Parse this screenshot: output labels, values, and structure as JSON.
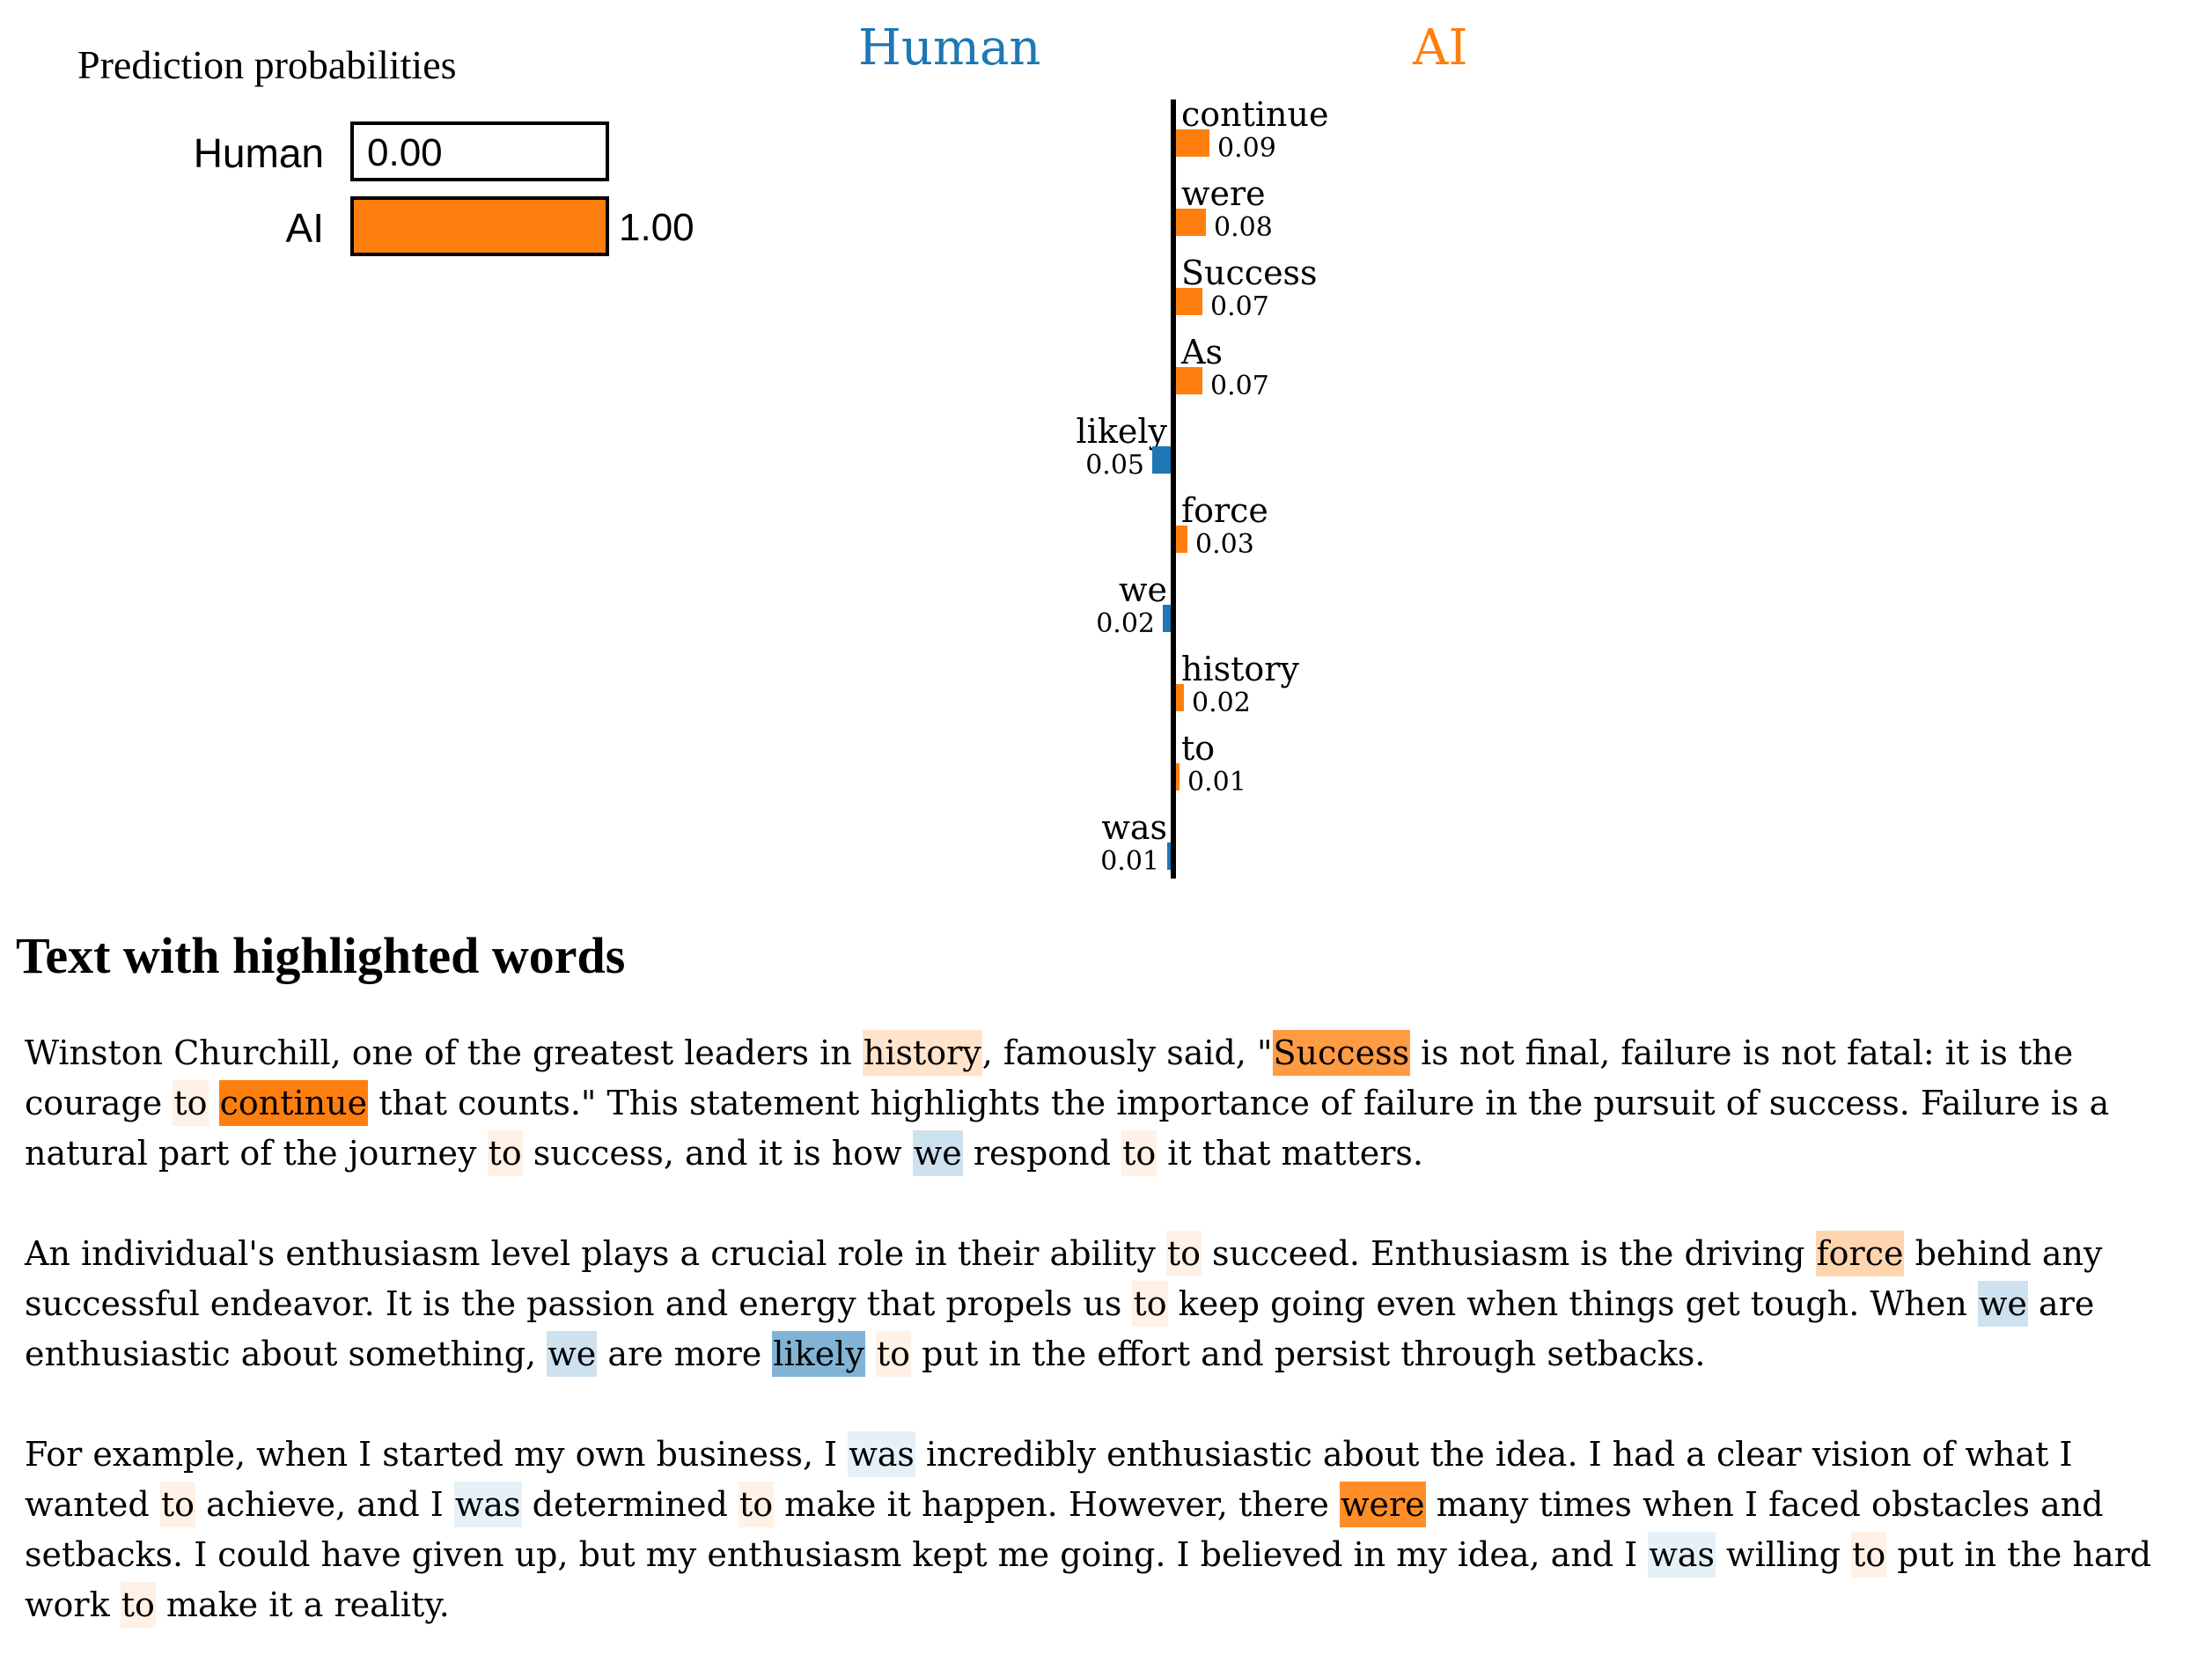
{
  "probabilities": {
    "title": "Prediction probabilities",
    "rows": [
      {
        "label": "Human",
        "value": "0.00",
        "p": 0.0,
        "fill_color": "#ffffff"
      },
      {
        "label": "AI",
        "value": "1.00",
        "p": 1.0,
        "fill_color": "#ff7f0e"
      }
    ]
  },
  "chart": {
    "left_header": {
      "label": "Human",
      "color": "#1f77b4"
    },
    "right_header": {
      "label": "AI",
      "color": "#ff7f0e"
    },
    "positive_color": "#ff7f0e",
    "negative_color": "#1f77b4",
    "rows": [
      {
        "word": "continue",
        "value": "0.09",
        "weight": 0.09,
        "side": "right"
      },
      {
        "word": "were",
        "value": "0.08",
        "weight": 0.08,
        "side": "right"
      },
      {
        "word": "Success",
        "value": "0.07",
        "weight": 0.07,
        "side": "right"
      },
      {
        "word": "As",
        "value": "0.07",
        "weight": 0.07,
        "side": "right"
      },
      {
        "word": "likely",
        "value": "0.05",
        "weight": 0.05,
        "side": "left"
      },
      {
        "word": "force",
        "value": "0.03",
        "weight": 0.03,
        "side": "right"
      },
      {
        "word": "we",
        "value": "0.02",
        "weight": 0.02,
        "side": "left"
      },
      {
        "word": "history",
        "value": "0.02",
        "weight": 0.02,
        "side": "right"
      },
      {
        "word": "to",
        "value": "0.01",
        "weight": 0.01,
        "side": "right"
      },
      {
        "word": "was",
        "value": "0.01",
        "weight": 0.01,
        "side": "left"
      }
    ]
  },
  "chart_data": [
    {
      "type": "bar",
      "title": "Prediction probabilities",
      "orientation": "horizontal",
      "categories": [
        "Human",
        "AI"
      ],
      "values": [
        0.0,
        1.0
      ],
      "value_labels": [
        "0.00",
        "1.00"
      ],
      "colors": [
        "#ffffff",
        "#ff7f0e"
      ],
      "xlim": [
        0,
        1
      ]
    },
    {
      "type": "bar",
      "title": "Local explanation weights (Human vs AI)",
      "orientation": "horizontal-diverging",
      "negative_label": "Human",
      "positive_label": "AI",
      "negative_color": "#1f77b4",
      "positive_color": "#ff7f0e",
      "categories": [
        "continue",
        "were",
        "Success",
        "As",
        "likely",
        "force",
        "we",
        "history",
        "to",
        "was"
      ],
      "values": [
        0.09,
        0.08,
        0.07,
        0.07,
        -0.05,
        0.03,
        -0.02,
        0.02,
        0.01,
        -0.01
      ]
    }
  ],
  "text_section": {
    "heading": "Text with highlighted words",
    "highlight_colors": {
      "continue": "rgba(255,127,14,1)",
      "were": "rgba(255,127,14,0.89)",
      "Success": "rgba(255,127,14,0.78)",
      "force": "rgba(255,127,14,0.33)",
      "history": "rgba(255,127,14,0.22)",
      "to": "rgba(255,127,14,0.11)",
      "likely": "rgba(31,119,180,0.56)",
      "we": "rgba(31,119,180,0.22)",
      "was": "rgba(31,119,180,0.11)"
    },
    "paragraphs": [
      [
        [
          "Winston Churchill, one of the greatest leaders in ",
          null
        ],
        [
          "history",
          "history"
        ],
        [
          ", famously said, \"",
          null
        ],
        [
          "Success",
          "Success"
        ],
        [
          " is not final, failure is not fatal: it is the courage ",
          null
        ],
        [
          "to",
          "to"
        ],
        [
          " ",
          null
        ],
        [
          "continue",
          "continue"
        ],
        [
          " that counts.\" This statement highlights the importance of failure in the pursuit of success. Failure is a natural part of the journey ",
          null
        ],
        [
          "to",
          "to"
        ],
        [
          " success, and it is how ",
          null
        ],
        [
          "we",
          "we"
        ],
        [
          " respond ",
          null
        ],
        [
          "to",
          "to"
        ],
        [
          " it that matters.",
          null
        ]
      ],
      [
        [
          "An individual's enthusiasm level plays a crucial role in their ability ",
          null
        ],
        [
          "to",
          "to"
        ],
        [
          " succeed. Enthusiasm is the driving ",
          null
        ],
        [
          "force",
          "force"
        ],
        [
          " behind any successful endeavor. It is the passion and energy that propels us ",
          null
        ],
        [
          "to",
          "to"
        ],
        [
          " keep going even when things get tough. When ",
          null
        ],
        [
          "we",
          "we"
        ],
        [
          " are enthusiastic about something, ",
          null
        ],
        [
          "we",
          "we"
        ],
        [
          " are more ",
          null
        ],
        [
          "likely",
          "likely"
        ],
        [
          " ",
          null
        ],
        [
          "to",
          "to"
        ],
        [
          " put in the effort and persist through setbacks.",
          null
        ]
      ],
      [
        [
          "For example, when I started my own business, I ",
          null
        ],
        [
          "was",
          "was"
        ],
        [
          " incredibly enthusiastic about the idea. I had a clear vision of what I wanted ",
          null
        ],
        [
          "to",
          "to"
        ],
        [
          " achieve, and I ",
          null
        ],
        [
          "was",
          "was"
        ],
        [
          " determined ",
          null
        ],
        [
          "to",
          "to"
        ],
        [
          " make it happen. However, there ",
          null
        ],
        [
          "were",
          "were"
        ],
        [
          " many times when I faced obstacles and setbacks. I could have given up, but my enthusiasm kept me going. I believed in my idea, and I ",
          null
        ],
        [
          "was",
          "was"
        ],
        [
          " willing ",
          null
        ],
        [
          "to",
          "to"
        ],
        [
          " put in the hard work ",
          null
        ],
        [
          "to",
          "to"
        ],
        [
          " make it a reality.",
          null
        ]
      ]
    ]
  }
}
